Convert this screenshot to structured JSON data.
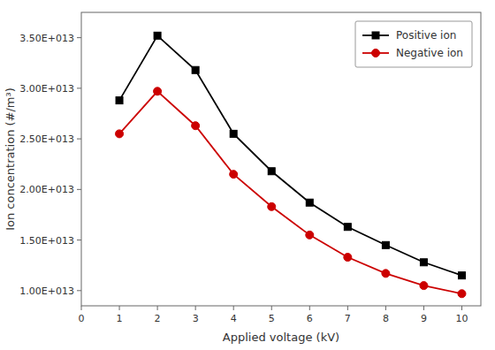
{
  "chart_data": {
    "type": "line",
    "xlabel": "Applied voltage (kV)",
    "ylabel": "Ion concentration (#/m³)",
    "x": [
      1,
      2,
      3,
      4,
      5,
      6,
      7,
      8,
      9,
      10
    ],
    "series": [
      {
        "name": "Positive ion",
        "color": "#000000",
        "marker": "square",
        "values": [
          28800000000000.0,
          35200000000000.0,
          31800000000000.0,
          25500000000000.0,
          21800000000000.0,
          18700000000000.0,
          16300000000000.0,
          14500000000000.0,
          12800000000000.0,
          11500000000000.0
        ]
      },
      {
        "name": "Negative ion",
        "color": "#cc0000",
        "marker": "circle",
        "values": [
          25500000000000.0,
          29700000000000.0,
          26300000000000.0,
          21500000000000.0,
          18300000000000.0,
          15500000000000.0,
          13300000000000.0,
          11700000000000.0,
          10500000000000.0,
          9700000000000.0
        ]
      }
    ],
    "xlim": [
      0,
      10.5
    ],
    "ylim": [
      8500000000000.0,
      37500000000000.0
    ],
    "xticks": [
      0,
      1,
      2,
      3,
      4,
      5,
      6,
      7,
      8,
      9,
      10
    ],
    "yticks": [
      {
        "value": 10000000000000.0,
        "label": "1.00E+013"
      },
      {
        "value": 15000000000000.0,
        "label": "1.50E+013"
      },
      {
        "value": 20000000000000.0,
        "label": "2.00E+013"
      },
      {
        "value": 25000000000000.0,
        "label": "2.50E+013"
      },
      {
        "value": 30000000000000.0,
        "label": "3.00E+013"
      },
      {
        "value": 35000000000000.0,
        "label": "3.50E+013"
      }
    ],
    "legend": "upper right",
    "grid": false
  }
}
